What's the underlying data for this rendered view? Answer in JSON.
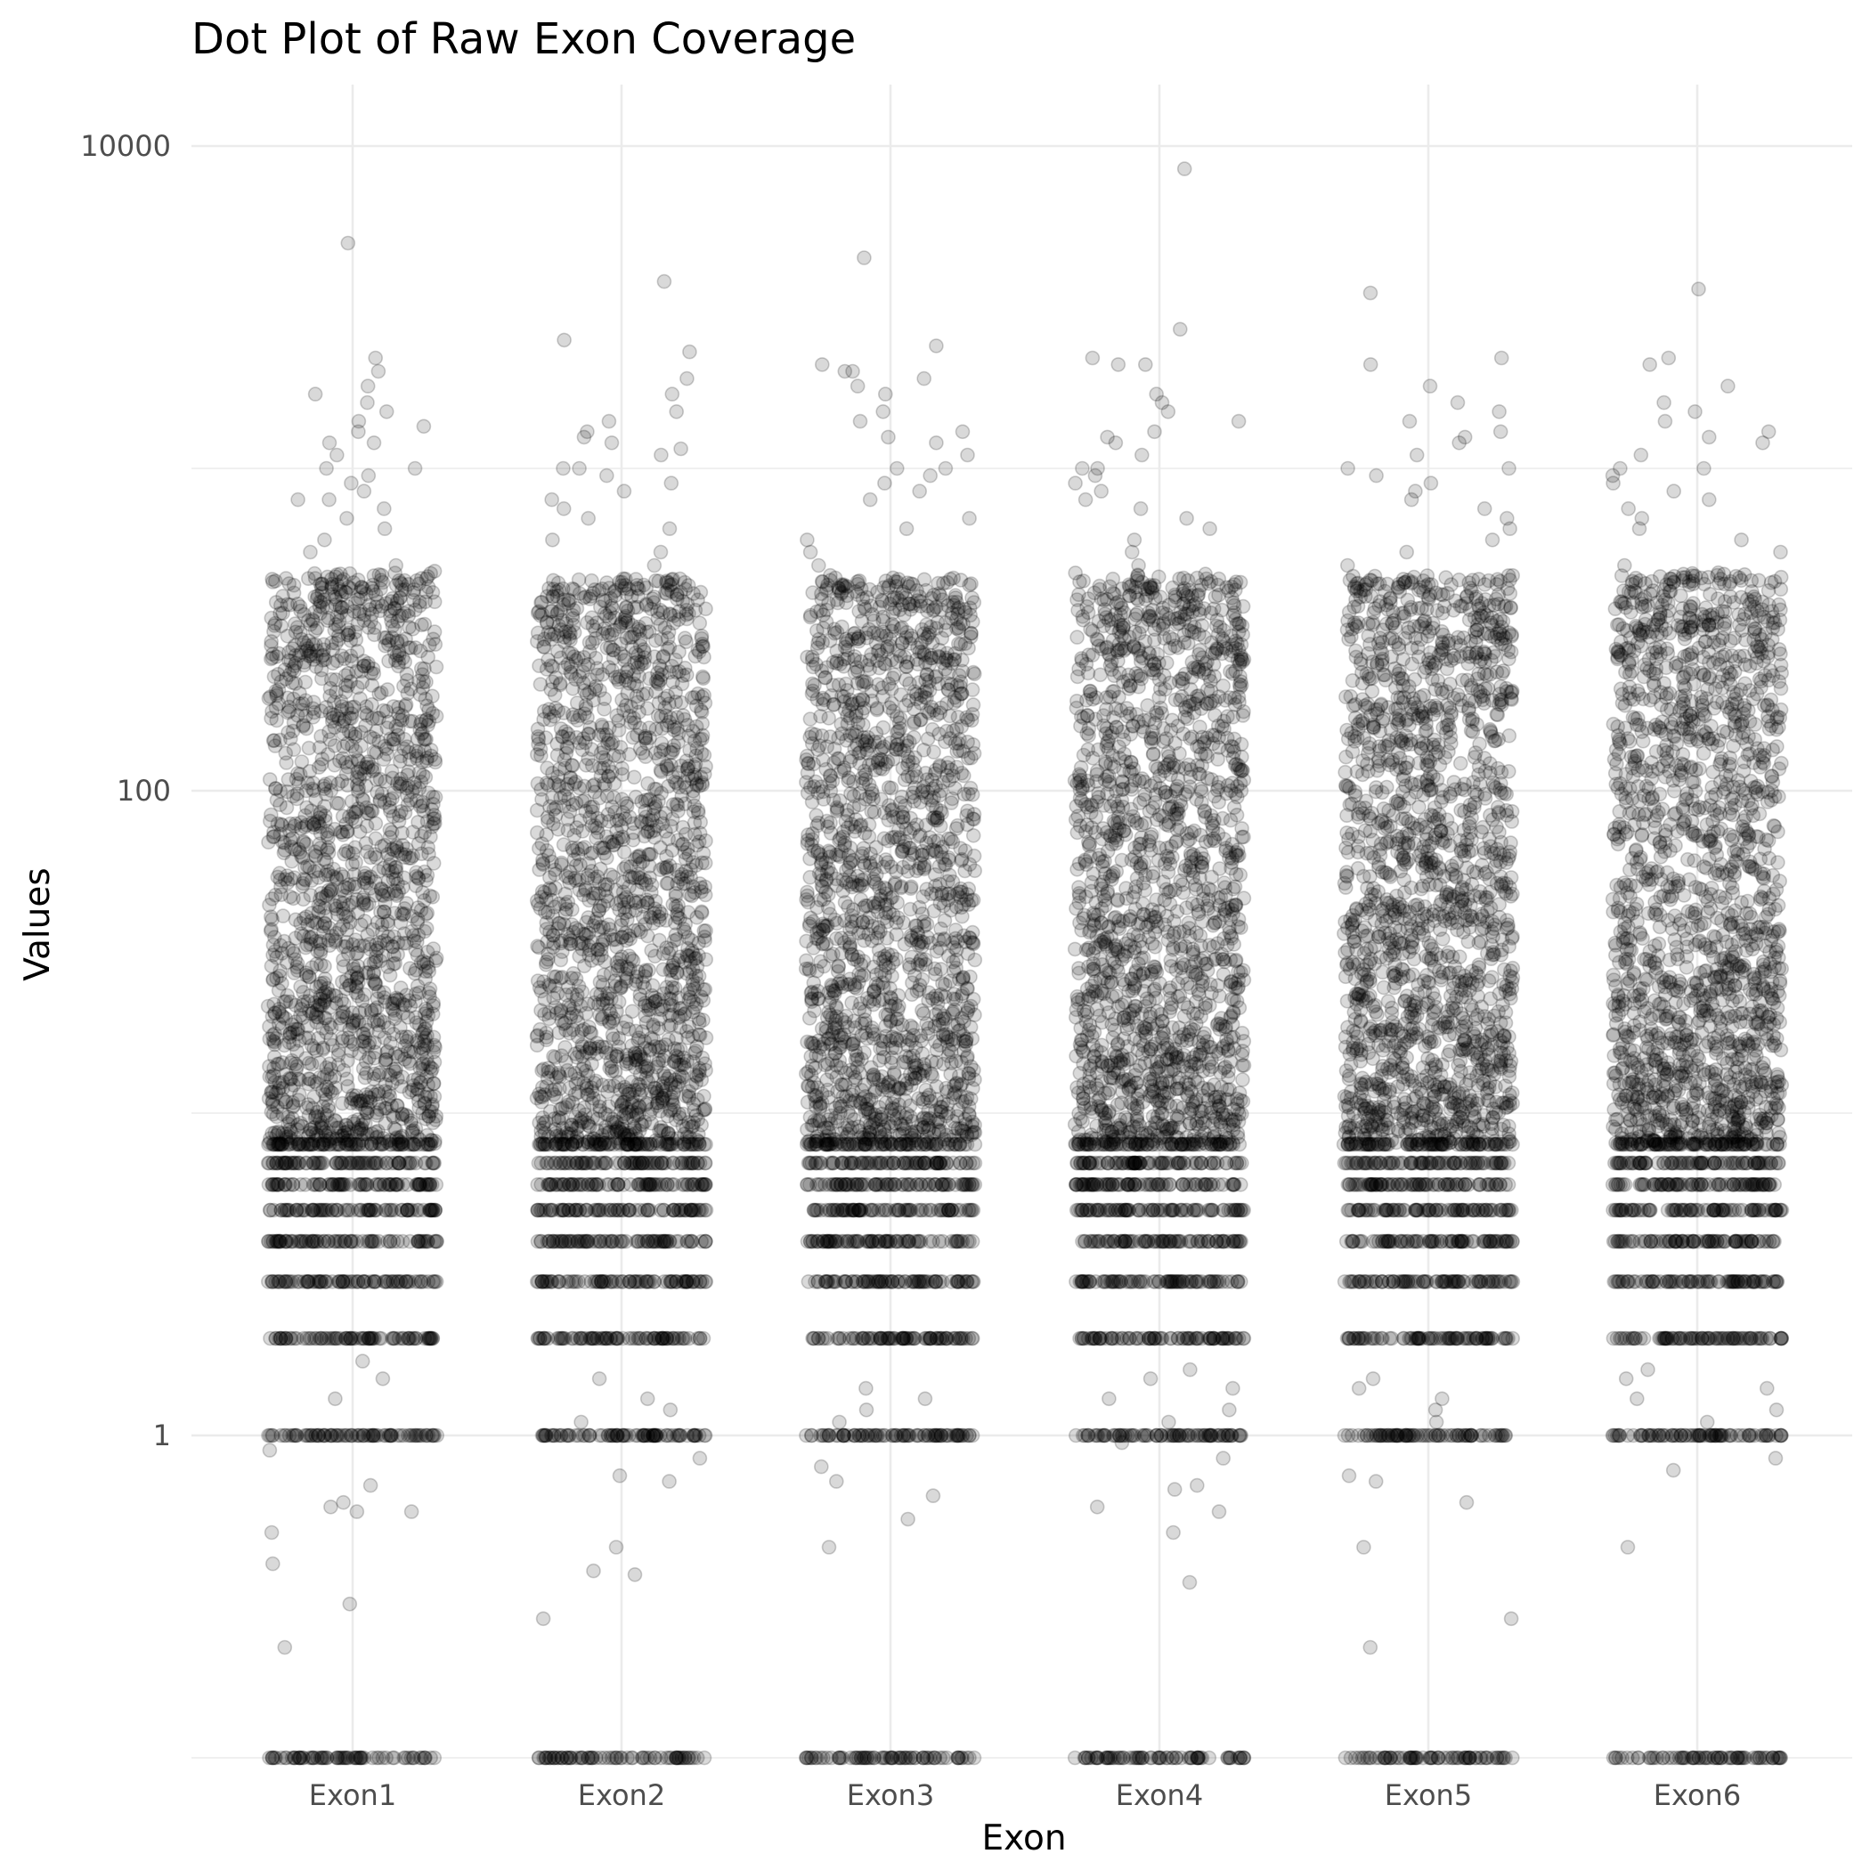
{
  "chart_data": {
    "type": "scatter",
    "title": "Dot Plot of Raw Exon Coverage",
    "xlabel": "Exon",
    "ylabel": "Values",
    "categories": [
      "Exon1",
      "Exon2",
      "Exon3",
      "Exon4",
      "Exon5",
      "Exon6"
    ],
    "y_scale": "log10",
    "ylim": [
      0.1,
      15000
    ],
    "y_ticks": [
      {
        "value": 1,
        "label": "1"
      },
      {
        "value": 100,
        "label": "100"
      },
      {
        "value": 10000,
        "label": "10000"
      }
    ],
    "y_minor_ticks": [
      0.1,
      10,
      1000
    ],
    "grid": true,
    "legend": "none",
    "point_color": "#000000",
    "point_alpha": 0.15,
    "jitter": true,
    "series": [
      {
        "category": "Exon1",
        "dense_range": [
          8,
          250
        ],
        "discrete_levels": [
          1,
          2,
          3,
          4,
          5,
          6,
          7,
          8
        ],
        "floor_value": 0.1,
        "sparse_values": [
          5000,
          2200,
          2000,
          1800,
          1700,
          1600,
          1500,
          1400,
          1350,
          1300,
          1200,
          1200,
          1100,
          1000,
          1000,
          950,
          900,
          850,
          800,
          800,
          750,
          700,
          650,
          600,
          550,
          500,
          480,
          1.7,
          1.5,
          1.3,
          0.9,
          0.7,
          0.62,
          0.6,
          0.58,
          0.58,
          0.5,
          0.4,
          0.3,
          0.22
        ]
      },
      {
        "category": "Exon2",
        "dense_range": [
          8,
          240
        ],
        "discrete_levels": [
          1,
          2,
          3,
          4,
          5,
          6,
          7,
          8
        ],
        "floor_value": 0.1,
        "sparse_values": [
          3800,
          2500,
          2300,
          1900,
          1700,
          1500,
          1400,
          1300,
          1250,
          1200,
          1150,
          1100,
          1000,
          1000,
          950,
          900,
          850,
          800,
          750,
          700,
          650,
          600,
          550,
          500,
          1.5,
          1.3,
          1.2,
          1.1,
          0.85,
          0.75,
          0.72,
          0.45,
          0.38,
          0.37,
          0.27
        ]
      },
      {
        "category": "Exon3",
        "dense_range": [
          8,
          245
        ],
        "discrete_levels": [
          1,
          2,
          3,
          4,
          5,
          6,
          7,
          8
        ],
        "floor_value": 0.1,
        "sparse_values": [
          4500,
          2400,
          2100,
          2000,
          2000,
          1900,
          1800,
          1700,
          1500,
          1400,
          1300,
          1250,
          1200,
          1100,
          1000,
          1000,
          950,
          900,
          850,
          800,
          700,
          650,
          600,
          550,
          500,
          1.4,
          1.3,
          1.2,
          1.1,
          0.8,
          0.72,
          0.65,
          0.55,
          0.45
        ]
      },
      {
        "category": "Exon4",
        "dense_range": [
          8,
          250
        ],
        "discrete_levels": [
          1,
          2,
          3,
          4,
          5,
          6,
          7,
          8
        ],
        "floor_value": 0.1,
        "sparse_values": [
          8500,
          2700,
          2200,
          2100,
          2100,
          1700,
          1600,
          1500,
          1400,
          1300,
          1250,
          1200,
          1100,
          1000,
          1000,
          950,
          900,
          850,
          800,
          750,
          700,
          650,
          600,
          550,
          500,
          1.6,
          1.5,
          1.4,
          1.3,
          1.2,
          1.1,
          0.95,
          0.85,
          0.7,
          0.68,
          0.6,
          0.58,
          0.5,
          0.35
        ]
      },
      {
        "category": "Exon5",
        "dense_range": [
          8,
          245
        ],
        "discrete_levels": [
          1,
          2,
          3,
          4,
          5,
          6,
          7,
          8
        ],
        "floor_value": 0.1,
        "sparse_values": [
          3500,
          2200,
          2100,
          1800,
          1600,
          1500,
          1400,
          1300,
          1250,
          1200,
          1100,
          1000,
          1000,
          950,
          900,
          850,
          800,
          750,
          700,
          650,
          600,
          550,
          500,
          1.5,
          1.4,
          1.3,
          1.2,
          1.1,
          0.75,
          0.72,
          0.62,
          0.45,
          0.27,
          0.22
        ]
      },
      {
        "category": "Exon6",
        "dense_range": [
          8,
          250
        ],
        "discrete_levels": [
          1,
          2,
          3,
          4,
          5,
          6,
          7,
          8
        ],
        "floor_value": 0.1,
        "sparse_values": [
          3600,
          2200,
          2100,
          1800,
          1600,
          1500,
          1400,
          1300,
          1250,
          1200,
          1100,
          1000,
          1000,
          950,
          900,
          850,
          800,
          750,
          700,
          650,
          600,
          550,
          500,
          1.6,
          1.5,
          1.4,
          1.3,
          1.2,
          1.1,
          0.85,
          0.78,
          0.45
        ]
      }
    ]
  }
}
